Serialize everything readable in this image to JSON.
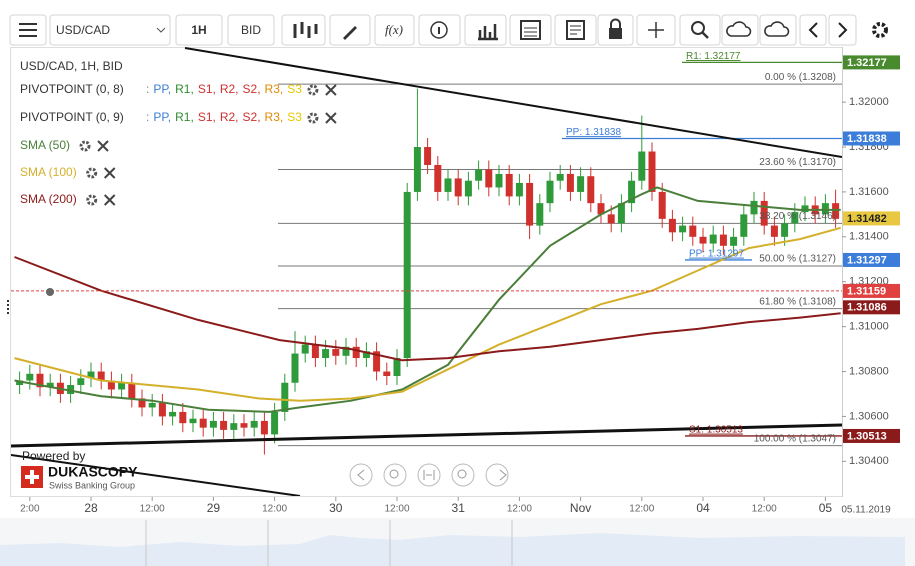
{
  "toolbar": {
    "symbol": "USD/CAD",
    "timeframe": "1H",
    "side": "BID",
    "function_button": "f(x)"
  },
  "legend": {
    "instrument": "USD/CAD, 1H, BID",
    "indicators": [
      {
        "name": "PIVOTPOINT (0, 8)",
        "prefix": ":",
        "items": [
          {
            "label": "PP,",
            "color": "#3b7dd8"
          },
          {
            "label": "R1,",
            "color": "#2e8b2e"
          },
          {
            "label": "S1,",
            "color": "#d03030"
          },
          {
            "label": "R2,",
            "color": "#d03030"
          },
          {
            "label": "S2,",
            "color": "#d03030"
          },
          {
            "label": "R3,",
            "color": "#e08a00"
          },
          {
            "label": "S3",
            "color": "#e8c800"
          }
        ]
      },
      {
        "name": "PIVOTPOINT (0, 9)",
        "prefix": ":",
        "items": [
          {
            "label": "PP,",
            "color": "#3b7dd8"
          },
          {
            "label": "R1,",
            "color": "#2e8b2e"
          },
          {
            "label": "S1,",
            "color": "#d03030"
          },
          {
            "label": "R2,",
            "color": "#d03030"
          },
          {
            "label": "S2,",
            "color": "#d03030"
          },
          {
            "label": "R3,",
            "color": "#e08a00"
          },
          {
            "label": "S3",
            "color": "#e8c800"
          }
        ]
      }
    ]
  },
  "branding": {
    "powered_by": "Powered by",
    "brand": "DUKASCOPY",
    "tagline": "Swiss Banking Group"
  },
  "chart_data": {
    "type": "candlestick",
    "x": [
      -14,
      -12,
      -10,
      -8,
      -6,
      -4,
      -2,
      0,
      2,
      4,
      6,
      8,
      10,
      12,
      14,
      16,
      18,
      20,
      22,
      24,
      26,
      28,
      30,
      32,
      34,
      36,
      38,
      40,
      42,
      44,
      46,
      48,
      50,
      52,
      54,
      56,
      58,
      60,
      62,
      64,
      66,
      68,
      70,
      72,
      74,
      76,
      78,
      80,
      82,
      84,
      86,
      88,
      90,
      92,
      94,
      96,
      98,
      100,
      102,
      104,
      106,
      108,
      110,
      112,
      114,
      116,
      118,
      120,
      122,
      124,
      126,
      128,
      130,
      132,
      134,
      136,
      138,
      140,
      142,
      144,
      146
    ],
    "open": [
      1.3074,
      1.3076,
      1.3079,
      1.3073,
      1.3075,
      1.307,
      1.3074,
      1.3077,
      1.308,
      1.3076,
      1.3072,
      1.3075,
      1.3068,
      1.3064,
      1.3066,
      1.306,
      1.3062,
      1.3057,
      1.3059,
      1.3055,
      1.3058,
      1.3054,
      1.3057,
      1.3055,
      1.3058,
      1.3052,
      1.3062,
      1.3075,
      1.3088,
      1.3092,
      1.3086,
      1.309,
      1.3087,
      1.3091,
      1.3086,
      1.3089,
      1.308,
      1.3078,
      1.3086,
      1.316,
      1.318,
      1.3172,
      1.316,
      1.3166,
      1.3158,
      1.3165,
      1.317,
      1.3162,
      1.3168,
      1.3158,
      1.3164,
      1.3145,
      1.3155,
      1.3165,
      1.3168,
      1.316,
      1.3167,
      1.3155,
      1.315,
      1.3146,
      1.3155,
      1.3165,
      1.3178,
      1.316,
      1.3148,
      1.3142,
      1.3145,
      1.314,
      1.3137,
      1.3141,
      1.3136,
      1.314,
      1.315,
      1.3156,
      1.3145,
      1.314,
      1.3146,
      1.3151,
      1.3154,
      1.315,
      1.3155
    ],
    "high": [
      1.308,
      1.3083,
      1.3083,
      1.3079,
      1.3079,
      1.3078,
      1.3081,
      1.3084,
      1.3084,
      1.308,
      1.3079,
      1.3079,
      1.3072,
      1.307,
      1.307,
      1.3066,
      1.3066,
      1.3063,
      1.3063,
      1.3062,
      1.3062,
      1.3061,
      1.3061,
      1.3062,
      1.3062,
      1.3066,
      1.3079,
      1.3098,
      1.3096,
      1.3096,
      1.3094,
      1.3094,
      1.3095,
      1.3095,
      1.3093,
      1.3093,
      1.3084,
      1.309,
      1.3164,
      1.3206,
      1.3184,
      1.3176,
      1.317,
      1.317,
      1.3169,
      1.3174,
      1.3174,
      1.3172,
      1.3172,
      1.3168,
      1.3168,
      1.3159,
      1.3169,
      1.3172,
      1.3172,
      1.3171,
      1.3171,
      1.3159,
      1.3154,
      1.3159,
      1.3169,
      1.3194,
      1.3182,
      1.3164,
      1.3152,
      1.3149,
      1.3149,
      1.3144,
      1.3145,
      1.3145,
      1.3144,
      1.3154,
      1.316,
      1.316,
      1.3149,
      1.315,
      1.3155,
      1.3158,
      1.3158,
      1.3159,
      1.3161
    ],
    "low": [
      1.307,
      1.3072,
      1.3069,
      1.3069,
      1.3066,
      1.3066,
      1.307,
      1.3073,
      1.3072,
      1.3068,
      1.3068,
      1.3064,
      1.306,
      1.306,
      1.3056,
      1.3056,
      1.3053,
      1.3053,
      1.3051,
      1.3051,
      1.305,
      1.305,
      1.3051,
      1.3051,
      1.3043,
      1.3048,
      1.3058,
      1.3071,
      1.3084,
      1.3082,
      1.3082,
      1.3083,
      1.3083,
      1.3082,
      1.3082,
      1.3076,
      1.3074,
      1.3074,
      1.3082,
      1.3156,
      1.3168,
      1.3156,
      1.3156,
      1.3154,
      1.3154,
      1.3161,
      1.3158,
      1.3158,
      1.3154,
      1.3154,
      1.3139,
      1.3141,
      1.3151,
      1.3161,
      1.3156,
      1.3156,
      1.3151,
      1.3146,
      1.3142,
      1.3142,
      1.3151,
      1.3161,
      1.3156,
      1.3144,
      1.3138,
      1.3138,
      1.3136,
      1.3133,
      1.3133,
      1.3132,
      1.3132,
      1.3136,
      1.3146,
      1.3141,
      1.3136,
      1.3136,
      1.3142,
      1.3147,
      1.3146,
      1.3146,
      1.3144
    ],
    "close": [
      1.3076,
      1.3079,
      1.3073,
      1.3075,
      1.307,
      1.3074,
      1.3077,
      1.308,
      1.3076,
      1.3072,
      1.3075,
      1.3068,
      1.3064,
      1.3066,
      1.306,
      1.3062,
      1.3057,
      1.3059,
      1.3055,
      1.3058,
      1.3054,
      1.3057,
      1.3055,
      1.3058,
      1.3052,
      1.3062,
      1.3075,
      1.3088,
      1.3092,
      1.3086,
      1.309,
      1.3087,
      1.3091,
      1.3086,
      1.3089,
      1.308,
      1.3078,
      1.3086,
      1.316,
      1.318,
      1.3172,
      1.316,
      1.3166,
      1.3158,
      1.3165,
      1.317,
      1.3162,
      1.3168,
      1.3158,
      1.3164,
      1.3145,
      1.3155,
      1.3165,
      1.3168,
      1.316,
      1.3167,
      1.3155,
      1.315,
      1.3146,
      1.3155,
      1.3165,
      1.3178,
      1.316,
      1.3148,
      1.3142,
      1.3145,
      1.314,
      1.3137,
      1.3141,
      1.3136,
      1.314,
      1.315,
      1.3156,
      1.3145,
      1.314,
      1.3146,
      1.3151,
      1.3154,
      1.315,
      1.3155,
      1.3148
    ],
    "up_color": "#2e9a3a",
    "down_color": "#d0312d",
    "xlim": [
      -15,
      147
    ],
    "xticks": [
      {
        "value": -12,
        "label": "2:00"
      },
      {
        "value": 0,
        "label": "28"
      },
      {
        "value": 12,
        "label": "12:00"
      },
      {
        "value": 24,
        "label": "29"
      },
      {
        "value": 36,
        "label": "12:00"
      },
      {
        "value": 48,
        "label": "30"
      },
      {
        "value": 60,
        "label": "12:00"
      },
      {
        "value": 72,
        "label": "31"
      },
      {
        "value": 84,
        "label": "12:00"
      },
      {
        "value": 96,
        "label": "Nov"
      },
      {
        "value": 108,
        "label": "12:00"
      },
      {
        "value": 120,
        "label": "04"
      },
      {
        "value": 132,
        "label": "12:00"
      },
      {
        "value": 144,
        "label": "05"
      }
    ],
    "date_label": "05.11.2019",
    "ylim": [
      1.3025,
      1.3225
    ],
    "yticks": [
      {
        "value": 1.304,
        "label": "1.30400"
      },
      {
        "value": 1.306,
        "label": "1.30600"
      },
      {
        "value": 1.308,
        "label": "1.30800"
      },
      {
        "value": 1.31,
        "label": "1.31000"
      },
      {
        "value": 1.312,
        "label": "1.31200"
      },
      {
        "value": 1.314,
        "label": "1.31400"
      },
      {
        "value": 1.316,
        "label": "1.31600"
      },
      {
        "value": 1.318,
        "label": "1.31800"
      },
      {
        "value": 1.32,
        "label": "1.32000"
      }
    ],
    "series": [
      {
        "name": "SMA (50)",
        "color": "#4a7f3a",
        "x": [
          -15,
          2,
          12,
          23,
          35,
          41,
          51,
          61,
          70,
          80,
          90,
          100,
          108,
          111,
          119,
          129,
          139,
          147
        ],
        "values": [
          1.3076,
          1.3069,
          1.3067,
          1.3063,
          1.3062,
          1.3064,
          1.3067,
          1.3072,
          1.3083,
          1.3112,
          1.3136,
          1.315,
          1.3159,
          1.3162,
          1.3156,
          1.3154,
          1.3152,
          1.3152
        ]
      },
      {
        "name": "SMA (100)",
        "color": "#d4b02a",
        "x": [
          -15,
          2,
          21,
          33,
          41,
          51,
          61,
          70,
          80,
          90,
          100,
          110,
          119,
          129,
          139,
          147
        ],
        "values": [
          1.3086,
          1.3076,
          1.3072,
          1.3068,
          1.3067,
          1.3068,
          1.3071,
          1.3081,
          1.3092,
          1.3101,
          1.311,
          1.3116,
          1.3125,
          1.3135,
          1.3139,
          1.3144
        ]
      },
      {
        "name": "SMA (200)",
        "color": "#8b1a1a",
        "x": [
          -15,
          2,
          21,
          37,
          51,
          61,
          70,
          80,
          90,
          100,
          110,
          119,
          129,
          139,
          147
        ],
        "values": [
          1.3131,
          1.3116,
          1.3103,
          1.3094,
          1.309,
          1.3085,
          1.3086,
          1.3089,
          1.3091,
          1.3094,
          1.3097,
          1.3099,
          1.3102,
          1.3104,
          1.3106
        ]
      }
    ],
    "fibonacci": [
      {
        "value": 1.3208,
        "label": "0.00 % (1.3208)"
      },
      {
        "value": 1.317,
        "label": "23.60 % (1.3170)"
      },
      {
        "value": 1.3146,
        "label": "38.20 % (1.3146)"
      },
      {
        "value": 1.3127,
        "label": "50.00 % (1.3127)"
      },
      {
        "value": 1.3108,
        "label": "61.80 % (1.3108)"
      },
      {
        "value": 1.3047,
        "label": "100.00 % (1.3047)"
      }
    ],
    "pivots": [
      {
        "value": 1.32177,
        "label": "R1: 1.32177",
        "color": "#4a8a2e"
      },
      {
        "value": 1.31838,
        "label": "PP: 1.31838",
        "color": "#3b7dd8"
      },
      {
        "value": 1.31297,
        "label": "PP: 1.31297",
        "color": "#3b7dd8"
      },
      {
        "value": 1.30513,
        "label": "S1: 1.30513",
        "color": "#8b1a1a"
      }
    ],
    "price_labels": [
      {
        "value": 1.32177,
        "color": "#4a8a2e",
        "text_color": "#fff"
      },
      {
        "value": 1.31838,
        "color": "#3b7dd8",
        "text_color": "#fff"
      },
      {
        "value": 1.31482,
        "color": "#e8c840",
        "text_color": "#222"
      },
      {
        "value": 1.31297,
        "color": "#3b7dd8",
        "text_color": "#fff"
      },
      {
        "value": 1.31159,
        "color": "#e04040",
        "text_color": "#fff",
        "line": "dashed"
      },
      {
        "value": 1.31086,
        "color": "#8b1a1a",
        "text_color": "#fff"
      },
      {
        "value": 1.30513,
        "color": "#8b1a1a",
        "text_color": "#fff"
      }
    ]
  }
}
